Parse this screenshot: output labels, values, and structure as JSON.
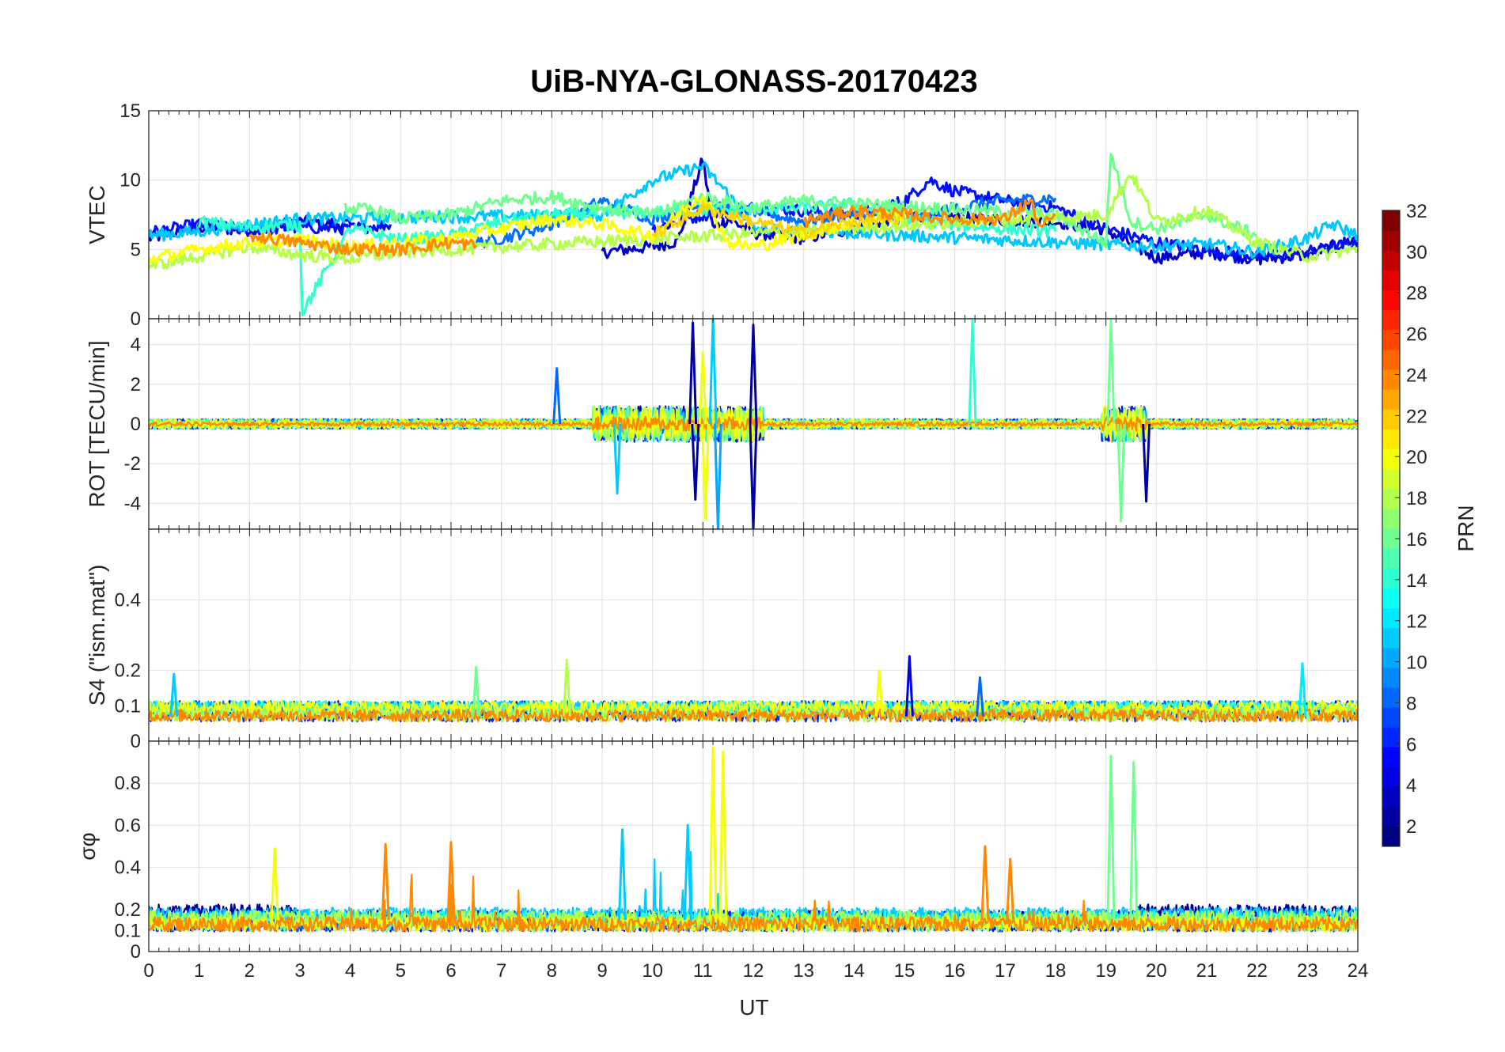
{
  "chart_data": {
    "type": "line",
    "title": "UiB-NYA-GLONASS-20170423",
    "xlabel": "UT",
    "xlim": [
      0,
      24
    ],
    "xticks": [
      "0",
      "1",
      "2",
      "3",
      "4",
      "5",
      "6",
      "7",
      "8",
      "9",
      "10",
      "11",
      "12",
      "13",
      "14",
      "15",
      "16",
      "17",
      "18",
      "19",
      "20",
      "21",
      "22",
      "23",
      "24"
    ],
    "grid": true,
    "colorbar": {
      "label": "PRN",
      "range": [
        1,
        32
      ],
      "ticks": [
        "2",
        "4",
        "6",
        "8",
        "10",
        "12",
        "14",
        "16",
        "18",
        "20",
        "22",
        "24",
        "26",
        "28",
        "30",
        "32"
      ],
      "colormap": "jet"
    },
    "panels": [
      {
        "ylabel": "VTEC",
        "ylim": [
          0,
          15
        ],
        "yticks": [
          "0",
          "5",
          "10",
          "15"
        ],
        "series": [
          {
            "prn": 2,
            "color": "#0000c8",
            "x": [
              0,
              1,
              2,
              3,
              4,
              5,
              6,
              7,
              8,
              9,
              10,
              10.5,
              11,
              11.2,
              11.5,
              12,
              13,
              14,
              15,
              16,
              17,
              18,
              19,
              20,
              21,
              22,
              23,
              24
            ],
            "y": [
              5.8,
              6.6,
              6.4,
              7,
              6.8,
              null,
              null,
              null,
              null,
              4.8,
              5.2,
              5.6,
              11.5,
              6.5,
              7.2,
              6.2,
              5.8,
              6.5,
              7.5,
              7.3,
              7.1,
              7,
              6.4,
              4.4,
              4.8,
              4.3,
              4.6,
              5.8
            ]
          },
          {
            "prn": 4,
            "color": "#0010ff",
            "x": [
              0,
              1,
              2,
              3,
              4,
              4.8,
              null,
              10,
              11,
              12,
              13,
              14,
              15,
              15.5,
              16,
              17,
              18,
              19,
              20,
              21,
              22,
              23,
              24
            ],
            "y": [
              6.2,
              6.8,
              6.4,
              6.6,
              6.5,
              6.8,
              null,
              6.5,
              7.5,
              8,
              7.8,
              7.5,
              8.5,
              10,
              9.2,
              8.5,
              8,
              6.5,
              5.5,
              5,
              4.5,
              4.8,
              5.5
            ]
          },
          {
            "prn": 8,
            "color": "#0070ff",
            "x": [
              6.4,
              7,
              8,
              9,
              10,
              11,
              12,
              13,
              14,
              15,
              16,
              17,
              18
            ],
            "y": [
              5.4,
              5.8,
              6.8,
              8.5,
              7.2,
              8.2,
              7.8,
              7,
              7.6,
              7,
              8,
              8.5,
              8.7
            ]
          },
          {
            "prn": 11,
            "color": "#00c8ff",
            "x": [
              0,
              1,
              2,
              3,
              9,
              10,
              11,
              11.5,
              12,
              20,
              21,
              22,
              23,
              23.5,
              24
            ],
            "y": [
              6,
              6.3,
              6.8,
              7.2,
              7.5,
              10,
              11,
              9,
              6.5,
              5.2,
              5.4,
              4.8,
              5.8,
              6.8,
              6
            ]
          },
          {
            "prn": 14,
            "color": "#30ffcf",
            "x": [
              1,
              2,
              3,
              3.05,
              4,
              5,
              6,
              7,
              8,
              13,
              14,
              15,
              16,
              17,
              18
            ],
            "y": [
              7,
              6.6,
              6.8,
              0.5,
              6.5,
              5.7,
              6,
              7,
              7.5,
              8,
              8.3,
              7.2,
              6.8,
              6.5,
              6.3
            ]
          },
          {
            "prn": 16,
            "color": "#70ff8f",
            "x": [
              3.9,
              4.5,
              5,
              6,
              7,
              8,
              9,
              10,
              11,
              12,
              13,
              18,
              19,
              19.1,
              19.5,
              20,
              21,
              22
            ],
            "y": [
              8,
              7.8,
              7.2,
              7.5,
              8.5,
              8.8,
              8,
              7.5,
              8.8,
              8,
              8.5,
              7.5,
              5.5,
              12,
              7,
              6.5,
              7.5,
              6
            ]
          },
          {
            "prn": 18,
            "color": "#b4ff4b",
            "x": [
              0,
              1,
              2,
              3,
              4,
              5,
              19,
              19.5,
              20,
              21,
              22,
              23,
              24
            ],
            "y": [
              3.8,
              4.5,
              5.2,
              4.6,
              4.3,
              4.8,
              7.5,
              10.5,
              7,
              7.8,
              5.5,
              4.5,
              5
            ]
          },
          {
            "prn": 20,
            "color": "#ffff00",
            "x": [
              0,
              1,
              2,
              3,
              4,
              5,
              6,
              7,
              8,
              9,
              10,
              11,
              11.5,
              12,
              13,
              14,
              15
            ],
            "y": [
              4.3,
              5,
              5.5,
              5.7,
              5.2,
              5.5,
              5.8,
              6.5,
              7.2,
              6.8,
              6,
              9,
              5.5,
              5.2,
              6,
              7,
              7.5
            ]
          },
          {
            "prn": 22,
            "color": "#ffd500",
            "x": [
              10,
              11,
              12,
              13,
              14,
              15
            ],
            "y": [
              6,
              8,
              7,
              6.2,
              7,
              7.2
            ]
          },
          {
            "prn": 24,
            "color": "#ff8c00",
            "x": [
              2,
              3,
              4,
              5,
              6,
              6.5,
              null,
              13,
              14,
              15,
              16,
              17,
              17.5,
              17.7,
              18
            ],
            "y": [
              6,
              5.5,
              5,
              5,
              5.5,
              5.3,
              null,
              7,
              7.8,
              7.5,
              7.2,
              7.2,
              8.5,
              6.5,
              7.5
            ]
          }
        ]
      },
      {
        "ylabel": "ROT [TECU/min]",
        "ylim": [
          -5.3,
          5.3
        ],
        "yticks": [
          "4",
          "2",
          "0",
          "-2",
          "-4"
        ],
        "note": "dense noise around 0 with bursts near 9-12 UT and 19-19.7 UT",
        "spikes": [
          {
            "x": 10.8,
            "y": 5.1,
            "prn": 2
          },
          {
            "x": 10.85,
            "y": -3.8,
            "prn": 2
          },
          {
            "x": 11.3,
            "y": -5.3,
            "prn": 10
          },
          {
            "x": 11.2,
            "y": 5.3,
            "prn": 11
          },
          {
            "x": 11.05,
            "y": -4.8,
            "prn": 20
          },
          {
            "x": 11.0,
            "y": 3.6,
            "prn": 20
          },
          {
            "x": 12.0,
            "y": 5.0,
            "prn": 2
          },
          {
            "x": 12.0,
            "y": -5.3,
            "prn": 2
          },
          {
            "x": 9.3,
            "y": -3.5,
            "prn": 11
          },
          {
            "x": 8.1,
            "y": 2.8,
            "prn": 8
          },
          {
            "x": 16.35,
            "y": 5.2,
            "prn": 14
          },
          {
            "x": 19.1,
            "y": 5.2,
            "prn": 16
          },
          {
            "x": 19.3,
            "y": -4.9,
            "prn": 16
          },
          {
            "x": 19.8,
            "y": -3.9,
            "prn": 2
          }
        ]
      },
      {
        "ylabel": "S4 (\"ism.mat\")",
        "ylim": [
          0,
          0.6
        ],
        "yticks": [
          "0",
          "0.1",
          "0.2",
          "0.4"
        ],
        "note": "background near 0.05-0.1 with small peaks",
        "peaks": [
          {
            "x": 0.5,
            "y": 0.19,
            "prn": 11
          },
          {
            "x": 6.5,
            "y": 0.21,
            "prn": 16
          },
          {
            "x": 8.3,
            "y": 0.23,
            "prn": 18
          },
          {
            "x": 14.5,
            "y": 0.2,
            "prn": 20
          },
          {
            "x": 15.1,
            "y": 0.24,
            "prn": 4
          },
          {
            "x": 16.5,
            "y": 0.18,
            "prn": 8
          },
          {
            "x": 22.9,
            "y": 0.22,
            "prn": 12
          }
        ]
      },
      {
        "ylabel": "σφ",
        "ylim": [
          0,
          1
        ],
        "yticks": [
          "0",
          "0.1",
          "0.2",
          "0.4",
          "0.6",
          "0.8"
        ],
        "note": "background 0.1-0.2 with bursts",
        "peaks": [
          {
            "x": 2.5,
            "y": 0.49,
            "prn": 20
          },
          {
            "x": 4.7,
            "y": 0.51,
            "prn": 24
          },
          {
            "x": 6.0,
            "y": 0.52,
            "prn": 24
          },
          {
            "x": 9.4,
            "y": 0.58,
            "prn": 11
          },
          {
            "x": 10.7,
            "y": 0.6,
            "prn": 11
          },
          {
            "x": 11.2,
            "y": 0.97,
            "prn": 20
          },
          {
            "x": 11.4,
            "y": 0.95,
            "prn": 20
          },
          {
            "x": 16.6,
            "y": 0.5,
            "prn": 24
          },
          {
            "x": 17.1,
            "y": 0.44,
            "prn": 24
          },
          {
            "x": 19.1,
            "y": 0.93,
            "prn": 16
          },
          {
            "x": 19.55,
            "y": 0.9,
            "prn": 16
          }
        ]
      }
    ]
  }
}
